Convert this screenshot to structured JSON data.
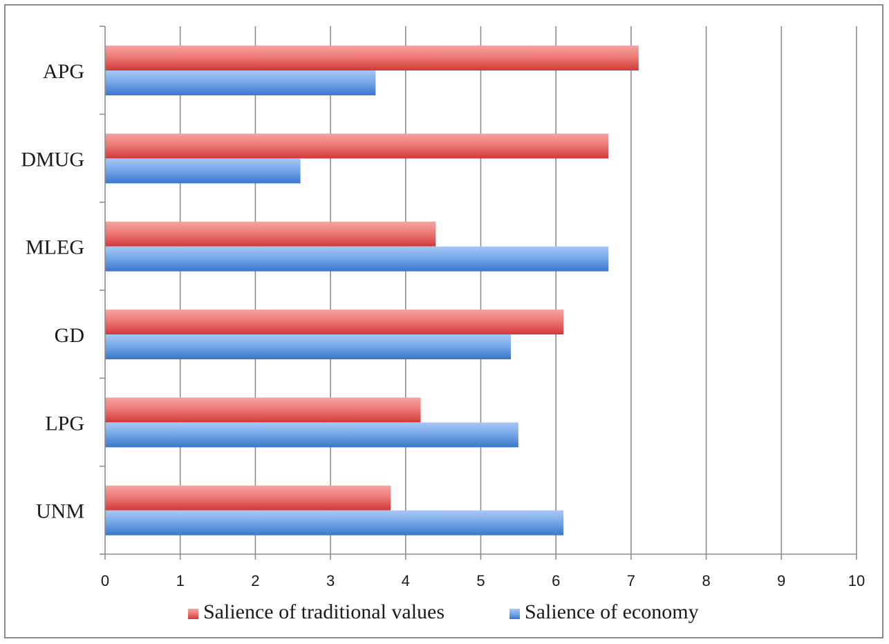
{
  "chart_data": {
    "type": "bar",
    "orientation": "horizontal",
    "categories": [
      "APG",
      "DMUG",
      "MLEG",
      "GD",
      "LPG",
      "UNM"
    ],
    "series": [
      {
        "name": "Salience of traditional values",
        "values": [
          7.1,
          6.7,
          4.4,
          6.1,
          4.2,
          3.8
        ],
        "color": "#e0504f"
      },
      {
        "name": "Salience of economy",
        "values": [
          3.6,
          2.6,
          6.7,
          5.4,
          5.5,
          6.1
        ],
        "color": "#4a86d8"
      }
    ],
    "xlim": [
      0,
      10
    ],
    "xticks": [
      "0",
      "1",
      "2",
      "3",
      "4",
      "5",
      "6",
      "7",
      "8",
      "9",
      "10"
    ],
    "grid": true,
    "legend": "bottom"
  }
}
